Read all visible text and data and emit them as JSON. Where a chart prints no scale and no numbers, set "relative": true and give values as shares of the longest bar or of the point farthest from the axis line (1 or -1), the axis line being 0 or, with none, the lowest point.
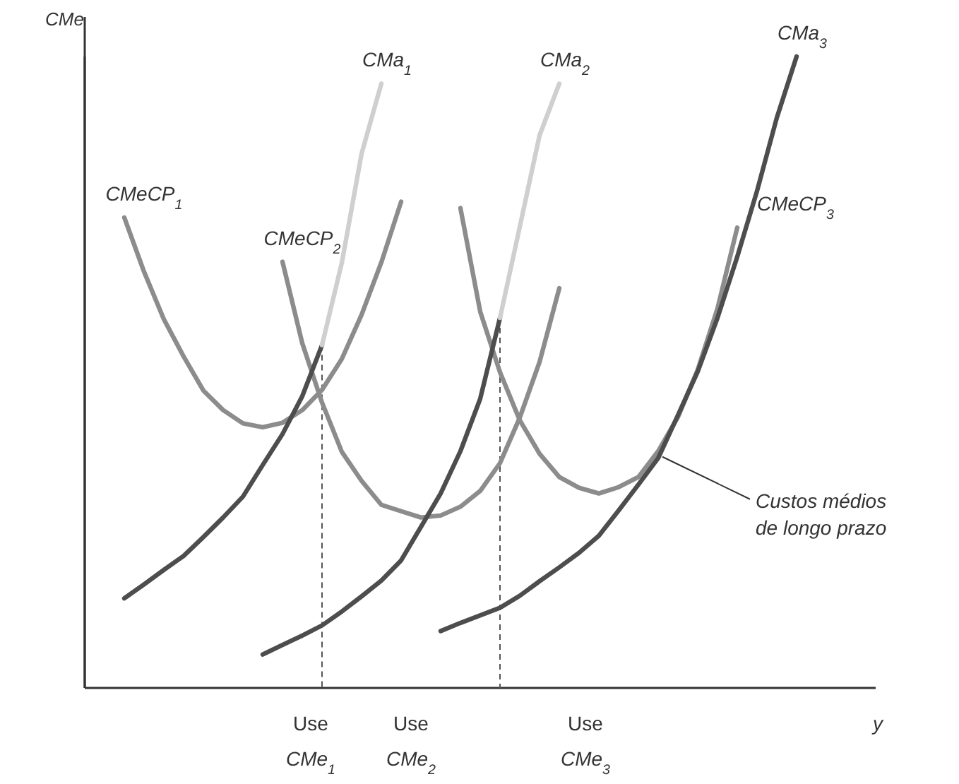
{
  "chart_data": {
    "type": "line",
    "relative": true,
    "ylabel": "CMe",
    "xlabel": "y",
    "marker": "none",
    "categories": [
      null,
      null,
      null,
      null,
      null,
      null,
      null,
      null,
      null,
      null,
      null,
      null,
      null,
      null,
      null,
      null,
      null,
      null,
      null,
      null,
      null,
      null,
      null,
      null,
      null,
      null,
      null,
      null,
      null,
      null,
      null,
      null,
      null,
      null,
      null,
      null,
      null,
      null,
      null,
      null,
      null
    ],
    "series": [
      {
        "name": "CMeCP$_{1}$",
        "color": "#8c8c8c",
        "values": [
          null,
          null,
          0.745,
          0.659,
          0.584,
          0.525,
          0.471,
          0.44,
          0.419,
          0.413,
          0.42,
          0.44,
          0.472,
          0.521,
          0.591,
          0.674,
          0.77,
          null,
          null,
          null,
          null,
          null,
          null,
          null,
          null,
          null,
          null,
          null,
          null,
          null,
          null,
          null,
          null,
          null,
          null,
          null,
          null,
          null,
          null,
          null,
          null
        ]
      },
      {
        "name": "CMeCP$_{2}$",
        "color": "#8c8c8c",
        "values": [
          null,
          null,
          null,
          null,
          null,
          null,
          null,
          null,
          null,
          null,
          0.675,
          0.546,
          0.452,
          0.374,
          0.328,
          0.29,
          0.28,
          0.27,
          0.273,
          0.287,
          0.312,
          0.356,
          0.428,
          0.516,
          0.633,
          null,
          null,
          null,
          null,
          null,
          null,
          null,
          null,
          null,
          null,
          null,
          null,
          null,
          null,
          null,
          null
        ]
      },
      {
        "name": "CMeCP$_{3}$",
        "color": "#8c8c8c",
        "values": [
          null,
          null,
          null,
          null,
          null,
          null,
          null,
          null,
          null,
          null,
          null,
          null,
          null,
          null,
          null,
          null,
          null,
          null,
          null,
          0.76,
          0.596,
          0.5,
          0.424,
          0.371,
          0.334,
          0.317,
          0.308,
          0.318,
          0.334,
          0.375,
          0.429,
          0.504,
          0.601,
          0.729,
          null,
          null,
          null,
          null,
          null,
          null,
          null
        ]
      },
      {
        "color": "#4d4d4d",
        "values": [
          null,
          null,
          0.142,
          0.164,
          0.187,
          0.209,
          0.239,
          0.27,
          0.303,
          0.353,
          0.402,
          0.462,
          0.543,
          null,
          null,
          null,
          null,
          null,
          null,
          null,
          null,
          null,
          null,
          null,
          null,
          null,
          null,
          null,
          null,
          null,
          null,
          null,
          null,
          null,
          null,
          null,
          null,
          null,
          null,
          null,
          null
        ]
      },
      {
        "name": "CMa$_{1}$",
        "color": "#cfcfcf",
        "values": [
          null,
          null,
          null,
          null,
          null,
          null,
          null,
          null,
          null,
          null,
          null,
          null,
          0.543,
          0.673,
          0.846,
          0.957,
          null,
          null,
          null,
          null,
          null,
          null,
          null,
          null,
          null,
          null,
          null,
          null,
          null,
          null,
          null,
          null,
          null,
          null,
          null,
          null,
          null,
          null,
          null,
          null,
          null
        ]
      },
      {
        "color": "#4d4d4d",
        "values": [
          null,
          null,
          null,
          null,
          null,
          null,
          null,
          null,
          null,
          0.053,
          0.068,
          0.083,
          0.099,
          0.121,
          0.145,
          0.17,
          0.202,
          0.255,
          0.308,
          0.375,
          0.458,
          0.586,
          null,
          null,
          null,
          null,
          null,
          null,
          null,
          null,
          null,
          null,
          null,
          null,
          null,
          null,
          null,
          null,
          null,
          null,
          null
        ]
      },
      {
        "name": "CMa$_{2}$",
        "color": "#cfcfcf",
        "values": [
          null,
          null,
          null,
          null,
          null,
          null,
          null,
          null,
          null,
          null,
          null,
          null,
          null,
          null,
          null,
          null,
          null,
          null,
          null,
          null,
          null,
          0.586,
          0.73,
          0.875,
          0.957,
          null,
          null,
          null,
          null,
          null,
          null,
          null,
          null,
          null,
          null,
          null,
          null,
          null,
          null,
          null,
          null
        ]
      },
      {
        "name": "CMa$_{3}$",
        "color": "#4d4d4d",
        "values": [
          null,
          null,
          null,
          null,
          null,
          null,
          null,
          null,
          null,
          null,
          null,
          null,
          null,
          null,
          null,
          null,
          null,
          null,
          0.09,
          0.103,
          0.115,
          0.127,
          0.146,
          0.169,
          0.191,
          0.214,
          0.241,
          0.281,
          0.322,
          0.364,
          0.432,
          0.501,
          0.586,
          0.683,
          0.787,
          0.903,
          1.0,
          null,
          null,
          null,
          null
        ]
      }
    ],
    "annotations": [
      "Use CMe$_{1}$",
      "Use CMe$_{2}$",
      "Use CMe$_{3}$",
      "Custos médios de longo prazo"
    ]
  }
}
